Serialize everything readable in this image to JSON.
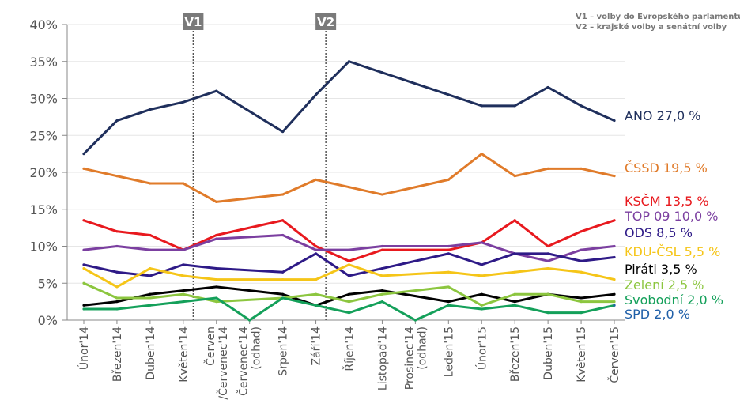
{
  "chart_data": {
    "type": "line",
    "categories": [
      "Únor'14",
      "Březen'14",
      "Duben'14",
      "Květen'14",
      "Červen /Červenec'14",
      "Červenec'14 (odhad)",
      "Srpen'14",
      "Září'14",
      "Říjen'14",
      "Listopad'14",
      "Prosinec'14 (odhad)",
      "Leden'15",
      "Únor'15",
      "Březen'15",
      "Duben'15",
      "Květen'15",
      "Červen'15"
    ],
    "ylim": [
      0,
      40
    ],
    "yticks": [
      "0%",
      "5%",
      "10%",
      "15%",
      "20%",
      "25%",
      "30%",
      "35%",
      "40%"
    ],
    "series": [
      {
        "name": "ANO",
        "label": "ANO 27,0 %",
        "color": "#1f2f5c",
        "values": [
          22.5,
          27,
          28.5,
          29.5,
          31,
          null,
          25.5,
          30.5,
          35,
          33.5,
          null,
          30.5,
          29,
          29,
          31.5,
          29,
          27
        ]
      },
      {
        "name": "ČSSD",
        "label": "ČSSD 19,5 %",
        "color": "#e07b2a",
        "values": [
          20.5,
          19.5,
          18.5,
          18.5,
          16,
          null,
          17,
          19,
          18,
          17,
          null,
          19,
          22.5,
          19.5,
          20.5,
          20.5,
          19.5
        ]
      },
      {
        "name": "KSČM",
        "label": "KSČM 13,5 %",
        "color": "#e8191e",
        "values": [
          13.5,
          12,
          11.5,
          9.5,
          11.5,
          null,
          13.5,
          10,
          8,
          9.5,
          null,
          9.5,
          10.5,
          13.5,
          10,
          12,
          13.5
        ]
      },
      {
        "name": "TOP 09",
        "label": "TOP 09 10,0 %",
        "color": "#7b3fa0",
        "values": [
          9.5,
          10,
          9.5,
          9.5,
          11,
          null,
          11.5,
          9.5,
          9.5,
          10,
          null,
          10,
          10.5,
          9,
          8,
          9.5,
          10
        ]
      },
      {
        "name": "ODS",
        "label": "ODS 8,5 %",
        "color": "#2e1a87",
        "values": [
          7.5,
          6.5,
          6,
          7.5,
          7,
          null,
          6.5,
          9,
          6,
          7,
          null,
          9,
          7.5,
          9,
          9,
          8,
          8.5
        ]
      },
      {
        "name": "KDU-ČSL",
        "label": "KDU-ČSL 5,5 %",
        "color": "#f5c518",
        "values": [
          7,
          4.5,
          7,
          6,
          5.5,
          null,
          5.5,
          5.5,
          7.5,
          6,
          null,
          6.5,
          6,
          6.5,
          7,
          6.5,
          5.5
        ]
      },
      {
        "name": "Piráti",
        "label": "Piráti 3,5 %",
        "color": "#000000",
        "values": [
          2,
          2.5,
          3.5,
          4,
          4.5,
          null,
          3.5,
          2,
          3.5,
          4,
          null,
          2.5,
          3.5,
          2.5,
          3.5,
          3,
          3.5
        ]
      },
      {
        "name": "Zelení",
        "label": "Zelení 2,5 %",
        "color": "#8cc63f",
        "values": [
          5,
          3,
          3,
          3.5,
          2.5,
          null,
          3,
          3.5,
          2.5,
          3.5,
          null,
          4.5,
          2,
          3.5,
          3.5,
          2.5,
          2.5
        ]
      },
      {
        "name": "Svobodní",
        "label": "Svobodní 2,0 %",
        "color": "#14a05a",
        "values": [
          1.5,
          1.5,
          2,
          2.5,
          3,
          0,
          3,
          2,
          1,
          2.5,
          0,
          2,
          1.5,
          2,
          1,
          1,
          2
        ]
      },
      {
        "name": "SPD",
        "label": "SPD  2,0 %",
        "color": "#1f5fa8",
        "values": [
          null,
          null,
          null,
          null,
          null,
          null,
          null,
          null,
          null,
          null,
          null,
          null,
          null,
          null,
          null,
          null,
          2
        ]
      }
    ],
    "markers": [
      {
        "label": "V1",
        "after_category": "Květen'14"
      },
      {
        "label": "V2",
        "after_category": "Září'14"
      }
    ],
    "notes": [
      "V1 – volby do Evropského parlamentu",
      "V2 – krajské volby a senátní volby"
    ],
    "grid": "horizontal",
    "legend": "right"
  }
}
